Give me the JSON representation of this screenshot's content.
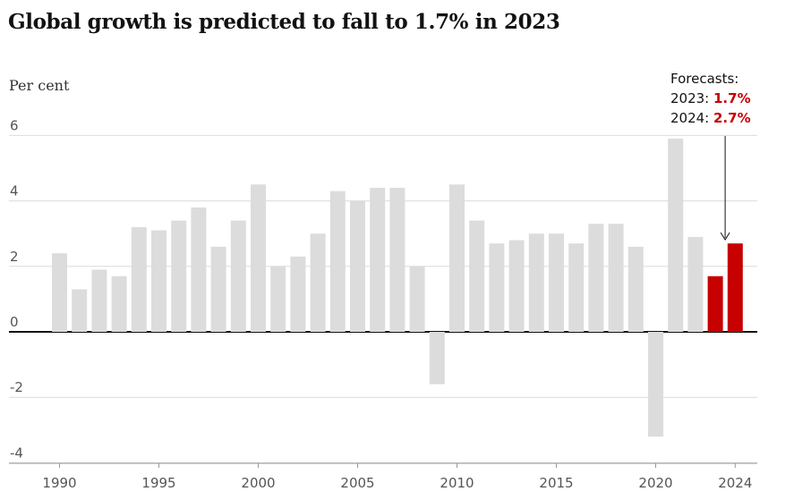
{
  "chart_data": {
    "type": "bar",
    "title": "Global growth is predicted to fall to 1.7% in 2023",
    "ylabel": "Per cent",
    "ylim": [
      -4,
      6
    ],
    "yticks": [
      6,
      4,
      2,
      0,
      -2,
      -4
    ],
    "xticks": [
      1990,
      1995,
      2000,
      2005,
      2010,
      2015,
      2020,
      2024
    ],
    "x": [
      1990,
      1991,
      1992,
      1993,
      1994,
      1995,
      1996,
      1997,
      1998,
      1999,
      2000,
      2001,
      2002,
      2003,
      2004,
      2005,
      2006,
      2007,
      2008,
      2009,
      2010,
      2011,
      2012,
      2013,
      2014,
      2015,
      2016,
      2017,
      2018,
      2019,
      2020,
      2021,
      2022,
      2023,
      2024
    ],
    "values": [
      2.4,
      1.3,
      1.9,
      1.7,
      3.2,
      3.1,
      3.4,
      3.8,
      2.6,
      3.4,
      4.5,
      2.0,
      2.3,
      3.0,
      4.3,
      4.0,
      4.4,
      4.4,
      2.0,
      -1.6,
      4.5,
      3.4,
      2.7,
      2.8,
      3.0,
      3.0,
      2.7,
      3.3,
      3.3,
      2.6,
      -3.2,
      5.9,
      2.9,
      1.7,
      2.7
    ],
    "forecast_years": [
      2023,
      2024
    ],
    "colors": {
      "actual": "#dcdcdc",
      "forecast": "#c70000"
    },
    "annotation": {
      "heading": "Forecasts:",
      "lines": [
        {
          "label": "2023: ",
          "value": "1.7%"
        },
        {
          "label": "2024: ",
          "value": "2.7%"
        }
      ]
    },
    "grid": true
  }
}
